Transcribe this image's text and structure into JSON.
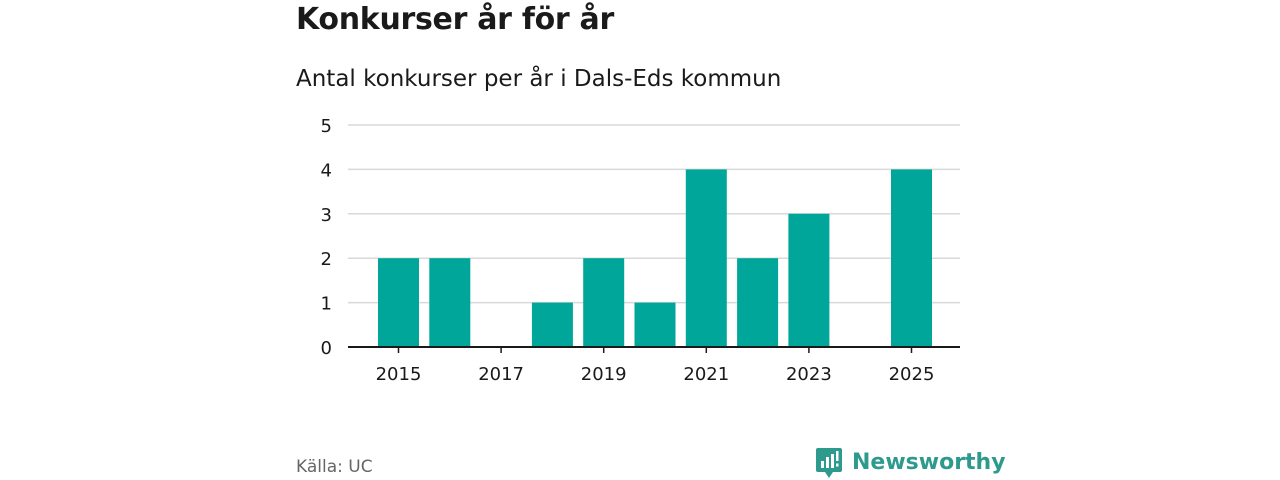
{
  "title": "Konkurser år för år",
  "subtitle": "Antal konkurser per år i Dals-Eds kommun",
  "source": "Källa: UC",
  "brand": {
    "name": "Newsworthy",
    "color": "#2e9a8e",
    "icon": "newsworthy-logo-icon"
  },
  "colors": {
    "bar": "#00a69a",
    "grid": "#d9d9d9",
    "axis": "#1a1a1a"
  },
  "chart_data": {
    "type": "bar",
    "categories": [
      "2015",
      "2016",
      "2017",
      "2018",
      "2019",
      "2020",
      "2021",
      "2022",
      "2023",
      "2024",
      "2025"
    ],
    "values": [
      2,
      2,
      0,
      1,
      2,
      1,
      4,
      2,
      3,
      0,
      4
    ],
    "x_tick_labels": [
      "2015",
      "2017",
      "2019",
      "2021",
      "2023",
      "2025"
    ],
    "y_ticks": [
      0,
      1,
      2,
      3,
      4,
      5
    ],
    "ylim": [
      0,
      5
    ],
    "title": "Konkurser år för år",
    "subtitle": "Antal konkurser per år i Dals-Eds kommun",
    "xlabel": "",
    "ylabel": "",
    "grid": true,
    "legend": "none"
  }
}
